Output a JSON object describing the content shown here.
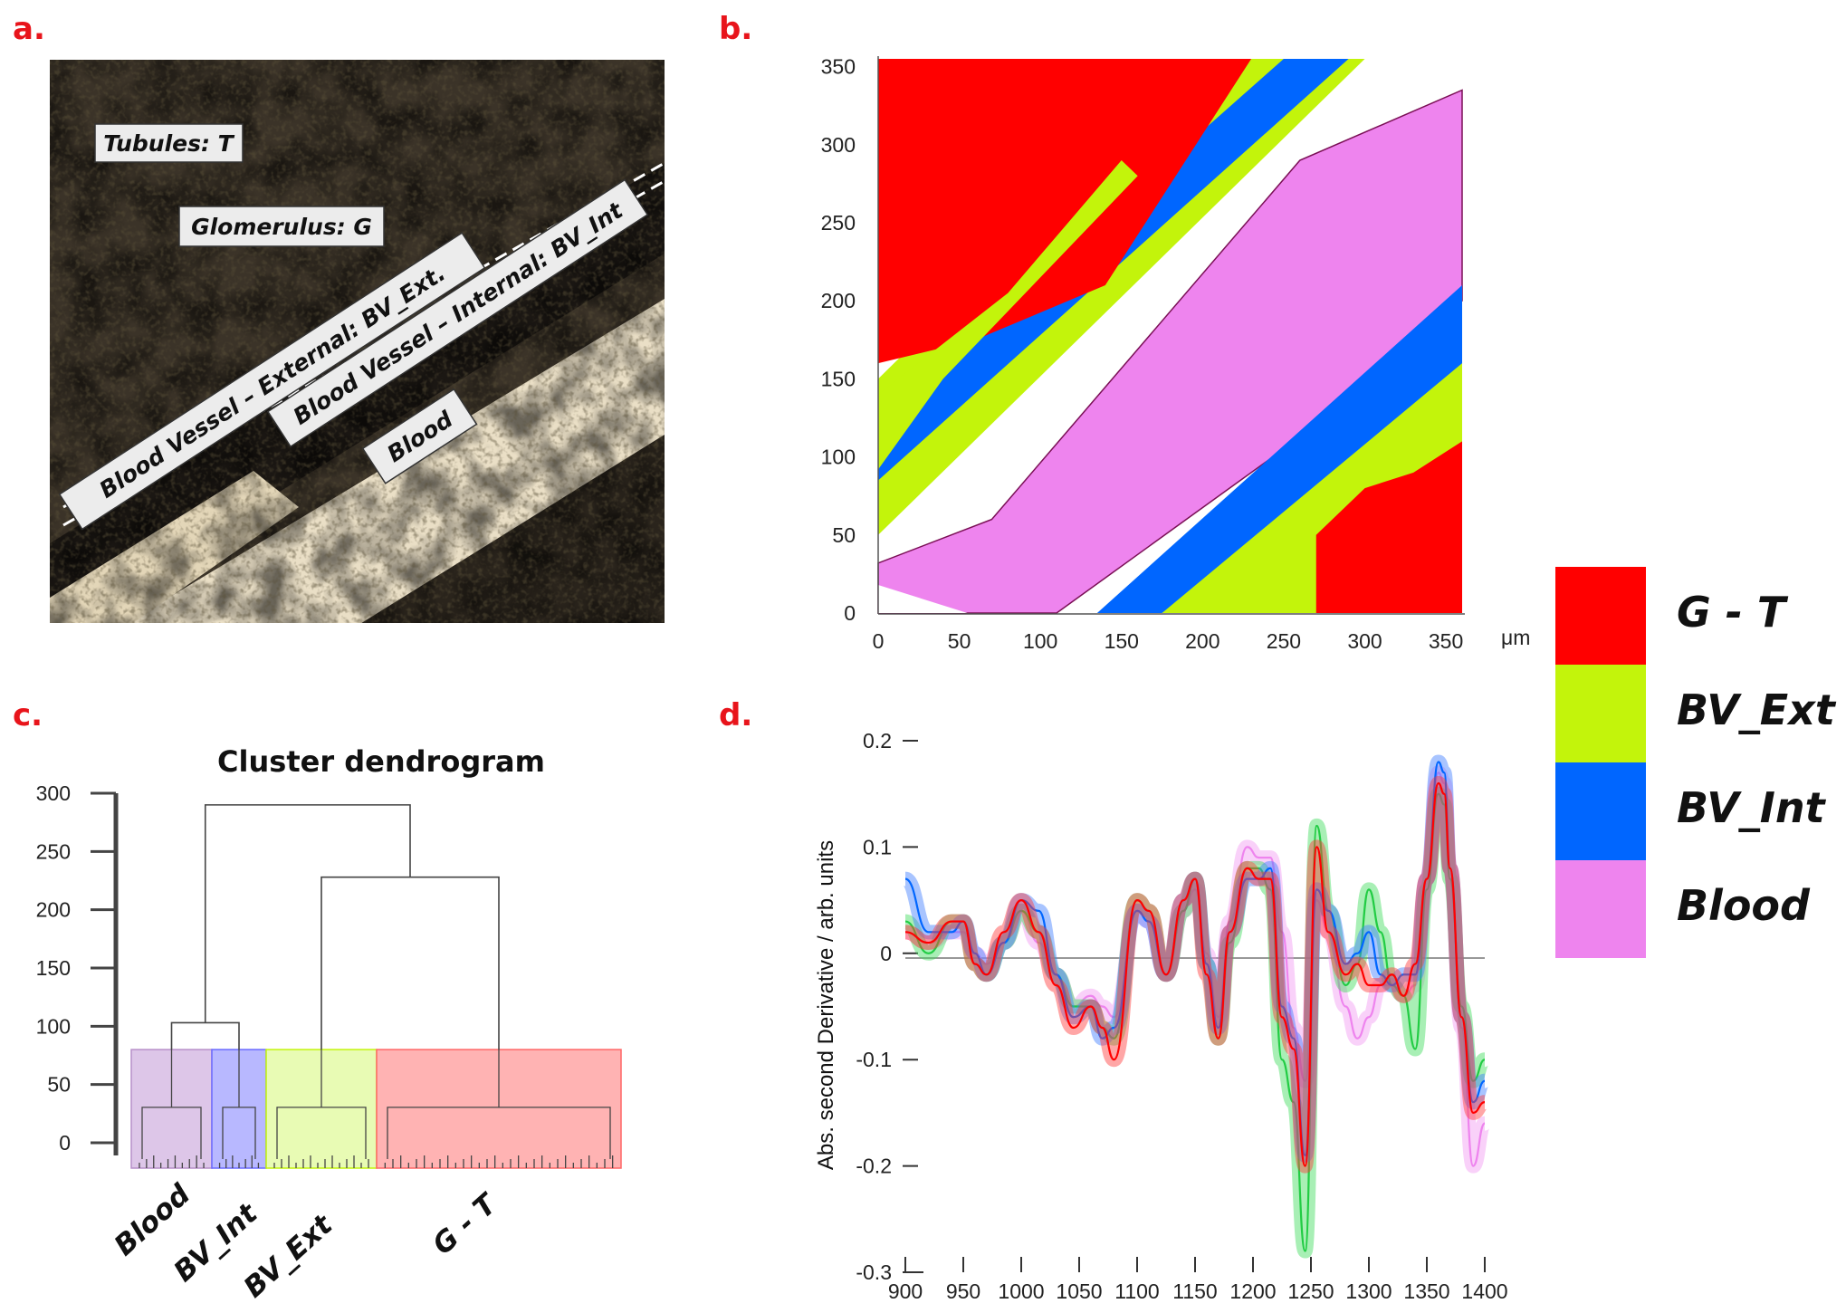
{
  "panels": {
    "a": "a.",
    "b": "b.",
    "c": "c.",
    "d": "d."
  },
  "colors": {
    "GT": "#ff0000",
    "BVExt": "#c3f40b",
    "BVInt": "#0066ff",
    "Blood": "#ee84ee",
    "Blood_dark": "#7a0f55"
  },
  "micrograph": {
    "labels": [
      "Tubules: T",
      "Glomerulus: G",
      "Blood Vessel – External: BV_Ext.",
      "Blood Vessel – Internal: BV_Int",
      "Blood"
    ]
  },
  "legend": {
    "items": [
      "G - T",
      "BV_Ext",
      "BV_Int",
      "Blood"
    ]
  },
  "chart_data": [
    {
      "type": "heatmap",
      "panel": "b",
      "title": "",
      "x_ticks": [
        "0",
        "50",
        "100",
        "150",
        "200",
        "250",
        "300",
        "350"
      ],
      "y_ticks": [
        "0",
        "50",
        "100",
        "150",
        "200",
        "250",
        "300",
        "350"
      ],
      "x_unit": "μm",
      "xlim": [
        0,
        360
      ],
      "ylim": [
        0,
        355
      ],
      "classes": [
        "G - T",
        "BV_Ext",
        "BV_Int",
        "Blood"
      ],
      "description_regions": "diagonal bands from lower-left to upper-right: Blood (pink) center band, white gaps, BV_Int (blue) bands, BV_Ext (green) bands, G - T (red) at upper-left and lower-right corners"
    },
    {
      "type": "dendrogram",
      "panel": "c",
      "title": "Cluster dendrogram",
      "y_ticks": [
        "0",
        "50",
        "100",
        "150",
        "200",
        "250",
        "300"
      ],
      "ylim": [
        0,
        300
      ],
      "clusters": [
        {
          "name": "Blood",
          "height": 80
        },
        {
          "name": "BV_Int",
          "height": 80
        },
        {
          "name": "BV_Ext",
          "height": 80
        },
        {
          "name": "G - T",
          "height": 80
        }
      ],
      "merges": [
        {
          "left": "Blood",
          "right": "BV_Int",
          "height": 103
        },
        {
          "left": "BV_Ext",
          "right": "G - T",
          "height": 228
        },
        {
          "left": "Blood+BV_Int",
          "right": "BV_Ext+G - T",
          "height": 290
        }
      ]
    },
    {
      "type": "line",
      "panel": "d",
      "xlabel": "",
      "ylabel": "Abs. second Derivative / arb. units",
      "xlim": [
        900,
        1400
      ],
      "ylim": [
        -0.3,
        0.2
      ],
      "x_ticks": [
        "900",
        "950",
        "1000",
        "1050",
        "1100",
        "1150",
        "1200",
        "1250",
        "1300",
        "1350",
        "1400"
      ],
      "y_ticks": [
        "0.2",
        "0.1",
        "0",
        "-0.1",
        "-0.2",
        "-0.3"
      ],
      "x": [
        900,
        920,
        940,
        950,
        960,
        970,
        985,
        1000,
        1015,
        1030,
        1045,
        1060,
        1070,
        1080,
        1100,
        1110,
        1125,
        1140,
        1150,
        1160,
        1170,
        1180,
        1195,
        1205,
        1215,
        1225,
        1235,
        1245,
        1255,
        1265,
        1280,
        1290,
        1300,
        1310,
        1320,
        1330,
        1340,
        1350,
        1360,
        1365,
        1370,
        1380,
        1390,
        1400
      ],
      "series": [
        {
          "name": "G - T",
          "values": [
            0.02,
            0.01,
            0.03,
            0.03,
            -0.01,
            -0.02,
            0.02,
            0.05,
            0.02,
            -0.03,
            -0.07,
            -0.05,
            -0.07,
            -0.1,
            0.05,
            0.04,
            -0.02,
            0.05,
            0.07,
            -0.02,
            -0.08,
            0.02,
            0.08,
            0.07,
            0.07,
            -0.06,
            -0.09,
            -0.2,
            0.1,
            0.02,
            -0.02,
            -0.01,
            -0.03,
            -0.03,
            -0.02,
            -0.04,
            -0.01,
            0.07,
            0.16,
            0.15,
            0.08,
            -0.06,
            -0.15,
            -0.14
          ]
        },
        {
          "name": "BV_Ext",
          "values": [
            0.03,
            0.0,
            0.03,
            0.03,
            -0.01,
            -0.02,
            0.01,
            0.04,
            0.02,
            -0.02,
            -0.05,
            -0.05,
            -0.07,
            -0.08,
            0.05,
            0.04,
            -0.02,
            0.04,
            0.07,
            -0.01,
            -0.08,
            0.01,
            0.08,
            0.08,
            0.06,
            -0.1,
            -0.14,
            -0.28,
            0.12,
            0.04,
            -0.03,
            -0.01,
            0.06,
            0.02,
            -0.03,
            -0.04,
            -0.09,
            0.06,
            0.15,
            0.14,
            0.07,
            -0.05,
            -0.12,
            -0.1
          ]
        },
        {
          "name": "BV_Int",
          "values": [
            0.07,
            0.02,
            0.02,
            0.03,
            0.0,
            -0.02,
            0.01,
            0.05,
            0.04,
            -0.02,
            -0.06,
            -0.05,
            -0.08,
            -0.07,
            0.04,
            0.03,
            -0.02,
            0.05,
            0.07,
            -0.01,
            -0.07,
            0.02,
            0.07,
            0.07,
            0.08,
            -0.05,
            -0.08,
            -0.19,
            0.06,
            0.04,
            -0.01,
            0.0,
            0.02,
            -0.02,
            -0.03,
            -0.02,
            -0.02,
            0.07,
            0.18,
            0.17,
            0.08,
            -0.06,
            -0.14,
            -0.12
          ]
        },
        {
          "name": "Blood",
          "values": [
            0.02,
            0.01,
            0.02,
            0.02,
            0.0,
            -0.01,
            0.01,
            0.04,
            0.01,
            -0.02,
            -0.05,
            -0.04,
            -0.05,
            -0.06,
            0.04,
            0.03,
            -0.02,
            0.04,
            0.06,
            0.0,
            -0.06,
            0.03,
            0.1,
            0.09,
            0.09,
            0.02,
            -0.07,
            -0.12,
            0.05,
            0.02,
            -0.05,
            -0.08,
            -0.06,
            -0.03,
            -0.03,
            -0.04,
            -0.03,
            0.07,
            0.17,
            0.16,
            0.08,
            -0.07,
            -0.2,
            -0.16
          ]
        }
      ]
    }
  ]
}
